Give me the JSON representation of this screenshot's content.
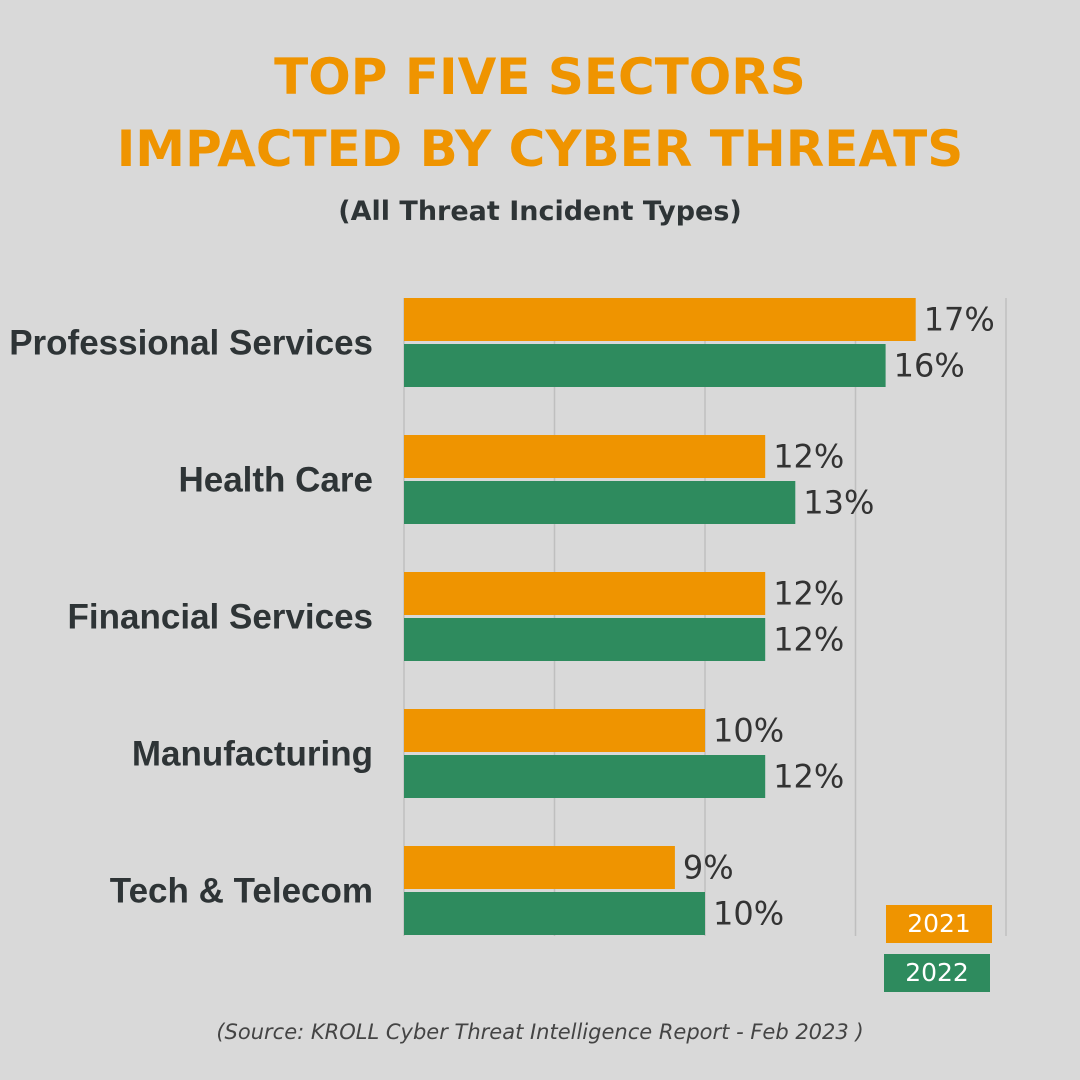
{
  "title_line_1": "TOP FIVE SECTORS",
  "title_line_2": "IMPACTED BY CYBER THREATS",
  "subtitle": "(All Threat Incident Types)",
  "source": "(Source: KROLL Cyber Threat Intelligence Report - Feb 2023 )",
  "chart_data": {
    "type": "bar",
    "orientation": "horizontal",
    "categories": [
      "Professional Services",
      "Health Care",
      "Financial Services",
      "Manufacturing",
      "Tech & Telecom"
    ],
    "series": [
      {
        "name": "2021",
        "color": "#ef9400",
        "values": [
          17,
          12,
          12,
          10,
          9
        ],
        "labels": [
          "17%",
          "12%",
          "12%",
          "10%",
          "9%"
        ]
      },
      {
        "name": "2022",
        "color": "#2e8b5e",
        "values": [
          16,
          13,
          12,
          12,
          10
        ],
        "labels": [
          "16%",
          "13%",
          "12%",
          "12%",
          "10%"
        ]
      }
    ],
    "xlim": [
      0,
      20
    ],
    "grid": true,
    "gridline_interval": 5,
    "legend_position": "bottom-right",
    "gridline_color": "#bfbfbf"
  }
}
